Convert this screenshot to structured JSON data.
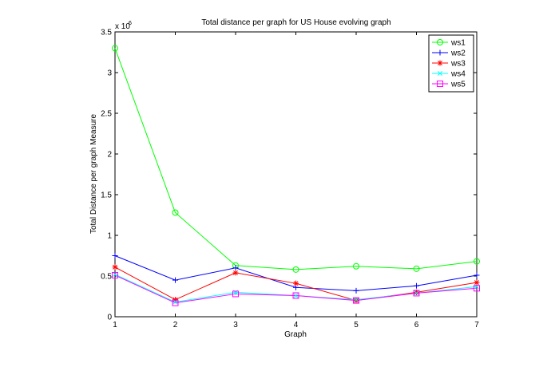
{
  "colors": {
    "ws1": "#00ff00",
    "ws2": "#0000ff",
    "ws3": "#ff0000",
    "ws4": "#00ffff",
    "ws5": "#ff00ff"
  },
  "chart_data": {
    "type": "line",
    "title": "Total distance per graph for US House evolving graph",
    "xlabel": "Graph",
    "ylabel": "Total Distance per graph Measure",
    "y_exponent_label": "x 10",
    "y_exponent": "6",
    "xlim": [
      1,
      7
    ],
    "ylim": [
      0,
      3.5
    ],
    "x_ticks": [
      "1",
      "2",
      "3",
      "4",
      "5",
      "6",
      "7"
    ],
    "y_ticks": [
      "0",
      "0.5",
      "1",
      "1.5",
      "2",
      "2.5",
      "3",
      "3.5"
    ],
    "grid": false,
    "legend_position": "top-right",
    "x": [
      1,
      2,
      3,
      4,
      5,
      6,
      7
    ],
    "series": [
      {
        "name": "ws1",
        "marker": "circle",
        "values": [
          3.3,
          1.28,
          0.63,
          0.58,
          0.62,
          0.59,
          0.68
        ]
      },
      {
        "name": "ws2",
        "marker": "plus",
        "values": [
          0.75,
          0.45,
          0.6,
          0.36,
          0.32,
          0.38,
          0.51
        ]
      },
      {
        "name": "ws3",
        "marker": "star",
        "values": [
          0.61,
          0.21,
          0.54,
          0.41,
          0.2,
          0.3,
          0.42
        ]
      },
      {
        "name": "ws4",
        "marker": "x",
        "values": [
          0.52,
          0.18,
          0.3,
          0.26,
          0.21,
          0.29,
          0.37
        ]
      },
      {
        "name": "ws5",
        "marker": "square",
        "values": [
          0.51,
          0.17,
          0.28,
          0.26,
          0.2,
          0.29,
          0.35
        ]
      }
    ]
  }
}
